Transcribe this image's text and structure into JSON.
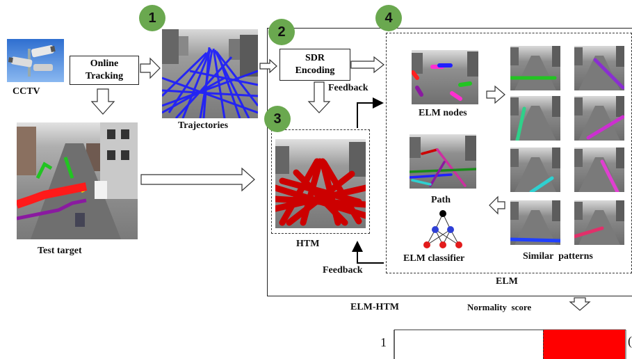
{
  "cctv_label": "CCTV",
  "online_tracking": {
    "line1": "Online",
    "line2": "Tracking"
  },
  "trajectories_label": "Trajectories",
  "test_target_label": "Test target",
  "sdr_encoding": {
    "line1": "SDR",
    "line2": "Encoding"
  },
  "feedback_top": "Feedback",
  "feedback_bottom": "Feedback",
  "htm_label": "HTM",
  "elm_nodes_label": "ELM nodes",
  "path_label": "Path",
  "elm_classifier_label": "ELM classifier",
  "similar_patterns_label": "Similar  patterns",
  "elm_label": "ELM",
  "elm_htm_label": "ELM-HTM",
  "normality_score_label": "Normality  score",
  "score_axis_value": "1",
  "score_edge_glyph": "(",
  "badges": [
    "1",
    "2",
    "3",
    "4"
  ],
  "colors": {
    "badge": "#6aa84f",
    "score_bar": "#ff0000",
    "trajectory_blue": "#1a1aff",
    "htm_red": "#cc0000"
  }
}
